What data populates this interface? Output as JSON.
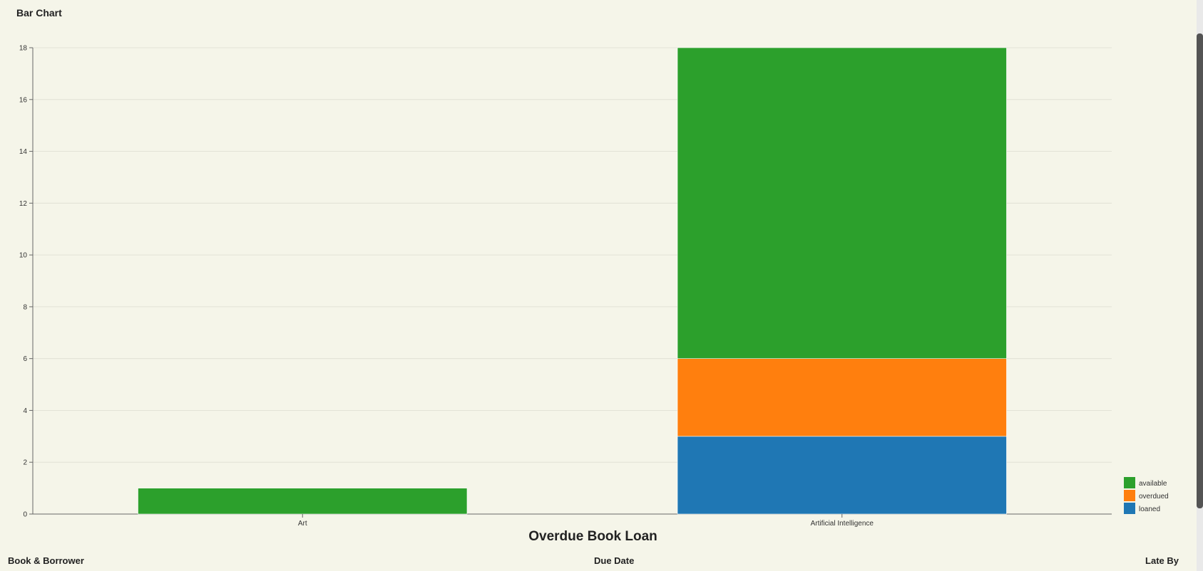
{
  "page": {
    "label": "Bar Chart",
    "table_headers": {
      "book": "Book & Borrower",
      "due": "Due Date",
      "late": "Late By"
    }
  },
  "chart_data": {
    "type": "bar",
    "stacked": true,
    "title": "Overdue Book Loan",
    "xlabel": "",
    "ylabel": "",
    "categories": [
      "Art",
      "Artificial Intelligence"
    ],
    "series": [
      {
        "name": "loaned",
        "color": "#1f77b4",
        "values": [
          0,
          3
        ]
      },
      {
        "name": "overdued",
        "color": "#ff7f0e",
        "values": [
          0,
          3
        ]
      },
      {
        "name": "available",
        "color": "#2ca02c",
        "values": [
          1,
          12
        ]
      }
    ],
    "ylim": [
      0,
      18
    ],
    "yticks": [
      0,
      2,
      4,
      6,
      8,
      10,
      12,
      14,
      16,
      18
    ],
    "grid": true,
    "legend": "bottom-right"
  }
}
